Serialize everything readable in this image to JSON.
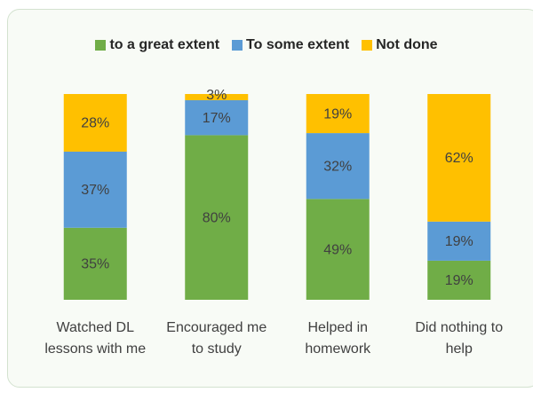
{
  "chart_data": {
    "type": "stacked_bar",
    "categories": [
      "Watched DL lessons with me",
      "Encouraged me to study",
      "Helped in homework",
      "Did nothing to help"
    ],
    "series": [
      {
        "name": "to a great extent",
        "color": "#70ad47",
        "values": [
          35,
          80,
          49,
          19
        ],
        "value_labels": [
          "35%",
          "80%",
          "49%",
          "19%"
        ]
      },
      {
        "name": "To some extent",
        "color": "#5b9bd5",
        "values": [
          37,
          17,
          32,
          19
        ],
        "value_labels": [
          "37%",
          "17%",
          "32%",
          "19%"
        ]
      },
      {
        "name": "Not done",
        "color": "#ffc000",
        "values": [
          28,
          3,
          19,
          62
        ],
        "value_labels": [
          "28%",
          "3%",
          "19%",
          "62%"
        ]
      }
    ],
    "legend": "top"
  }
}
